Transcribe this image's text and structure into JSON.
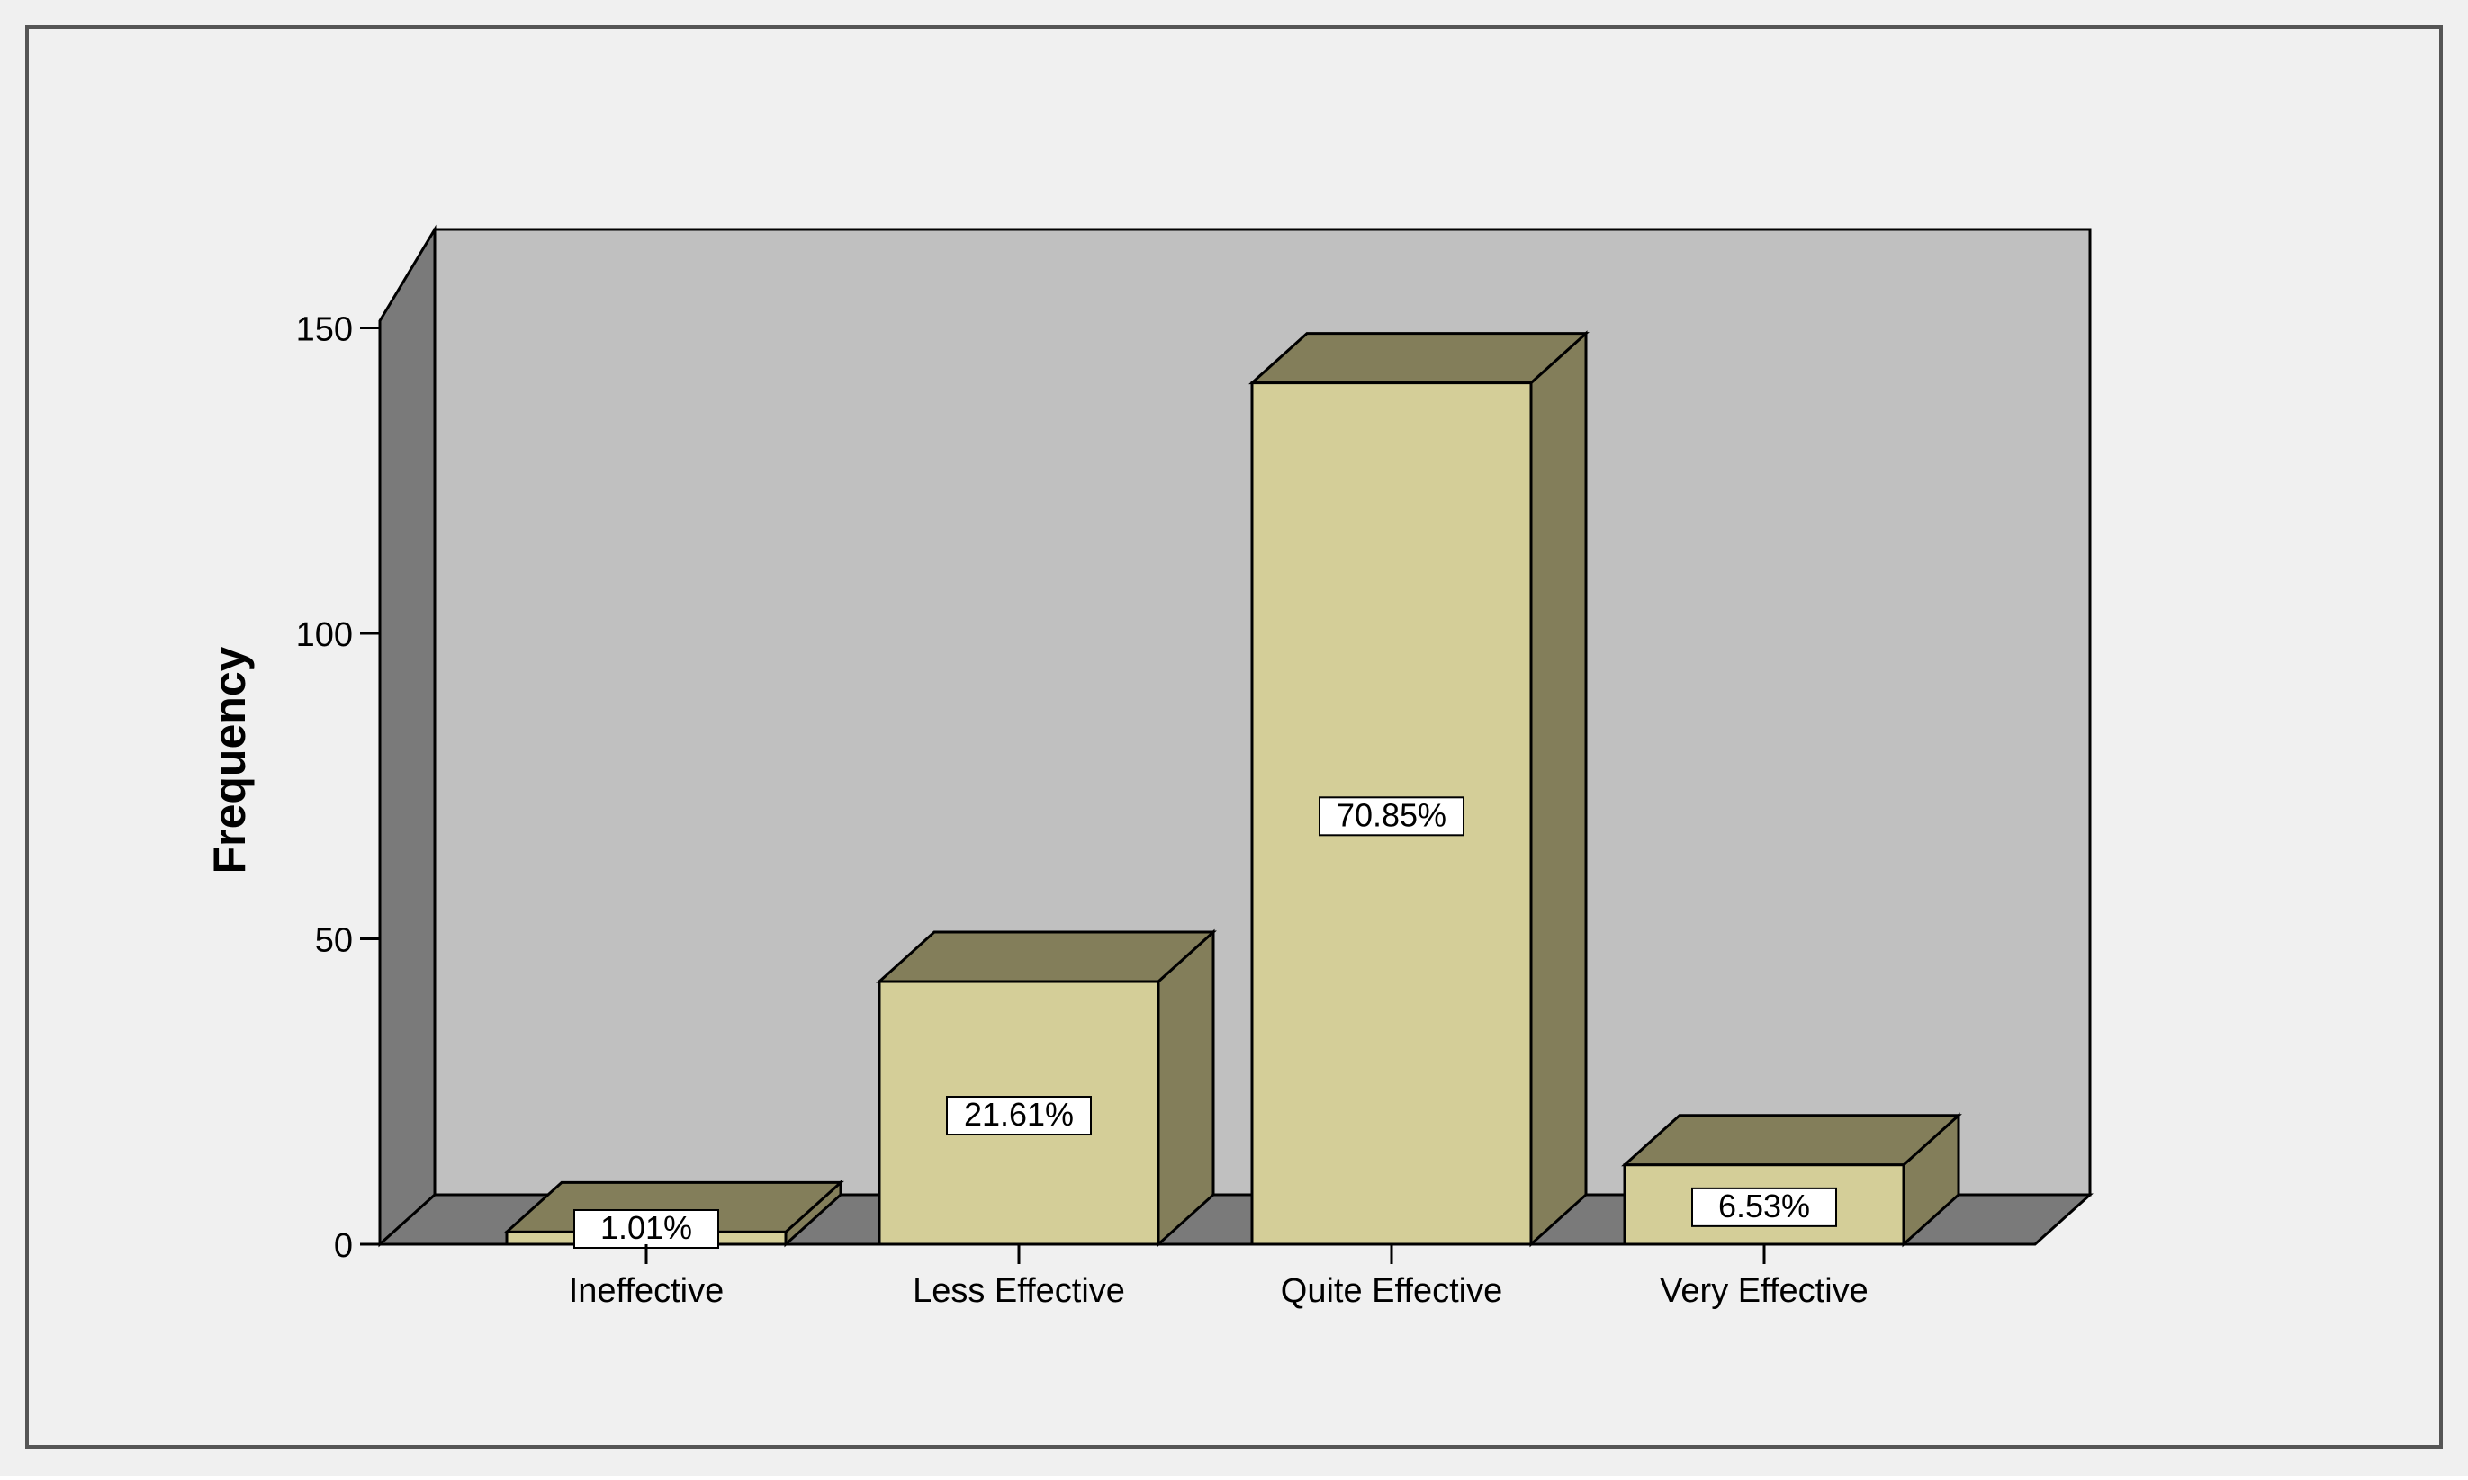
{
  "chart_data": {
    "type": "bar",
    "style": "3d",
    "categories": [
      "Ineffective",
      "Less Effective",
      "Quite Effective",
      "Very Effective"
    ],
    "values": [
      2,
      43,
      141,
      13
    ],
    "data_labels": [
      "1.01%",
      "21.61%",
      "70.85%",
      "6.53%"
    ],
    "title": "",
    "xlabel": "",
    "ylabel": "Frequency",
    "ylim": [
      0,
      160
    ],
    "yticks": [
      0,
      50,
      100,
      150
    ],
    "grid": false,
    "legend": "none"
  },
  "colors": {
    "page_background": "#f0f0f0",
    "plot_back_wall": "#c0c0c0",
    "plot_side_wall": "#7a7a7a",
    "plot_floor": "#7a7a7a",
    "bar_front": "#d4ce98",
    "bar_side": "#837e5a",
    "bar_top": "#837e5a",
    "outline": "#000000",
    "label_box": "#ffffff"
  }
}
